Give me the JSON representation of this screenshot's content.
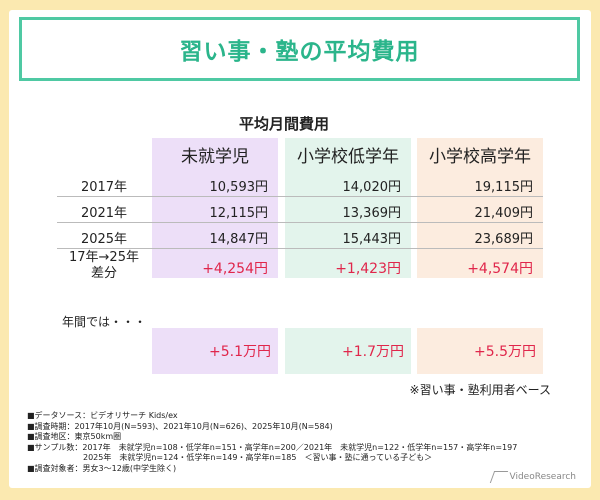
{
  "title": "習い事・塾の平均費用",
  "table": {
    "caption": "平均月間費用",
    "columns": [
      "未就学児",
      "小学校低学年",
      "小学校高学年"
    ],
    "rows": [
      {
        "label": "2017年",
        "values": [
          "10,593円",
          "14,020円",
          "19,115円"
        ]
      },
      {
        "label": "2021年",
        "values": [
          "12,115円",
          "13,369円",
          "21,409円"
        ]
      },
      {
        "label": "2025年",
        "values": [
          "14,847円",
          "15,443円",
          "23,689円"
        ]
      }
    ],
    "diff": {
      "label_line1": "17年→25年",
      "label_line2": "差分",
      "values": [
        "+4,254円",
        "+1,423円",
        "+4,574円"
      ]
    }
  },
  "yearly": {
    "label": "年間では・・・",
    "values": [
      "+5.1万円",
      "+1.7万円",
      "+5.5万円"
    ]
  },
  "note": "※習い事・塾利用者ベース",
  "footer": [
    "■データソース：ビデオリサーチ Kids/ex",
    "■調査時期：2017年10月(N=593)、2021年10月(N=626)、2025年10月(N=584)",
    "■調査地区：東京50km圏",
    "■サンプル数：2017年　未就学児n=108・低学年n=151・高学年n=200／2021年　未就学児n=122・低学年n=157・高学年n=197",
    "　　　　　　　2025年　未就学児n=124・低学年n=149・高学年n=185　＜習い事・塾に通っている子ども＞",
    "■調査対象者：男女3～12歳(中学生除く)"
  ],
  "logo": "VideoResearch",
  "colors": {
    "background": "#fbe9b0",
    "title": "#2bb58b",
    "title_border": "#4fc9a3",
    "col1": "#eddff8",
    "col2": "#e3f4ec",
    "col3": "#fcecdf",
    "diff": "#e0264b"
  }
}
